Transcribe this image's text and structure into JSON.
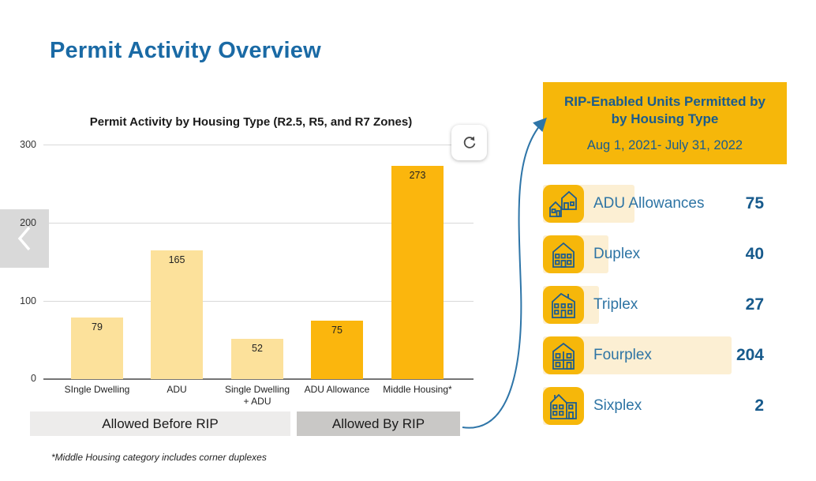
{
  "page": {
    "title": "Permit Activity Overview"
  },
  "chart": {
    "title": "Permit Activity by Housing Type (R2.5, R5, and R7 Zones)",
    "y_ticks": [
      "300",
      "200",
      "100",
      "0"
    ],
    "x_labels": [
      "SIngle Dwelling",
      "ADU",
      "Single Dwelling\n+ ADU",
      "ADU Allowance",
      "Middle Housing*"
    ],
    "groups": {
      "before": "Allowed Before RIP",
      "by": "Allowed By RIP"
    },
    "footnote": "*Middle Housing category includes corner duplexes"
  },
  "chart_data": {
    "type": "bar",
    "title": "Permit Activity by Housing Type (R2.5, R5, and R7 Zones)",
    "categories": [
      "SIngle Dwelling",
      "ADU",
      "Single Dwelling + ADU",
      "ADU Allowance",
      "Middle Housing*"
    ],
    "values": [
      79,
      165,
      52,
      75,
      273
    ],
    "bar_colors": [
      "#FCE19B",
      "#FCE19B",
      "#FCE19B",
      "#FBB60D",
      "#FBB60D"
    ],
    "xlabel": "",
    "ylabel": "",
    "ylim": [
      0,
      300
    ],
    "grid": "horizontal",
    "group_annotations": [
      {
        "label": "Allowed Before RIP",
        "categories": [
          "SIngle Dwelling",
          "ADU",
          "Single Dwelling + ADU"
        ]
      },
      {
        "label": "Allowed By RIP",
        "categories": [
          "ADU Allowance",
          "Middle Housing*"
        ]
      }
    ],
    "footnote": "*Middle Housing category includes corner duplexes"
  },
  "panel": {
    "title_line1": "RIP-Enabled Units Permitted by",
    "title_line2": "by Housing Type",
    "subtitle": "Aug 1, 2021- July 31, 2022",
    "items": [
      {
        "label": "ADU Allowances",
        "value": 75,
        "icon": "adu-houses-icon"
      },
      {
        "label": "Duplex",
        "value": 40,
        "icon": "duplex-house-icon"
      },
      {
        "label": "Triplex",
        "value": 27,
        "icon": "triplex-house-icon"
      },
      {
        "label": "Fourplex",
        "value": 204,
        "icon": "fourplex-house-icon"
      },
      {
        "label": "Sixplex",
        "value": 2,
        "icon": "sixplex-house-icon"
      }
    ]
  },
  "icons": {
    "refresh": "refresh-icon",
    "prev": "chevron-left-icon"
  },
  "colors": {
    "heading_blue": "#1A6AA5",
    "panel_gold": "#F6B70A",
    "panel_text_blue": "#1A5C8E",
    "row_label_blue": "#2E74A4",
    "row_highlight_cream": "#FCEFD3",
    "bar_light_yellow": "#FCE19B",
    "bar_amber": "#FBB60D",
    "group_before_gray": "#EDECEB",
    "group_by_gray": "#C9C8C6",
    "arrow_blue": "#2E75A8"
  }
}
